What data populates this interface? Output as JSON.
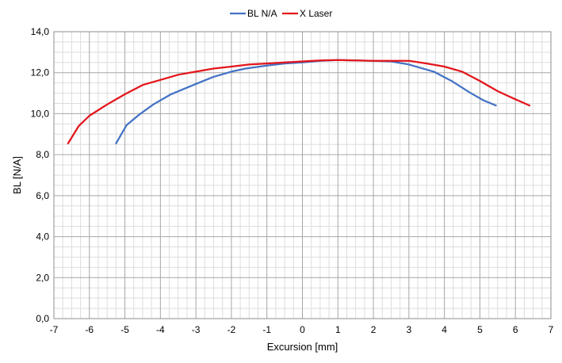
{
  "chart_data": {
    "type": "line",
    "xlabel": "Excursion [mm]",
    "ylabel": "BL [N/A]",
    "xlim": [
      -7,
      7
    ],
    "ylim": [
      0,
      14
    ],
    "x_ticks": [
      "-7",
      "-6",
      "-5",
      "-4",
      "-3",
      "-2",
      "-1",
      "0",
      "1",
      "2",
      "3",
      "4",
      "5",
      "6",
      "7"
    ],
    "y_ticks": [
      "0,0",
      "2,0",
      "4,0",
      "6,0",
      "8,0",
      "10,0",
      "12,0",
      "14,0"
    ],
    "grid": true,
    "legend_position": "top-center",
    "series": [
      {
        "name": "BL N/A",
        "color": "#4472C4",
        "points": [
          [
            -5.25,
            8.55
          ],
          [
            -4.95,
            9.45
          ],
          [
            -4.6,
            9.95
          ],
          [
            -4.2,
            10.45
          ],
          [
            -3.7,
            10.95
          ],
          [
            -3.0,
            11.45
          ],
          [
            -2.5,
            11.8
          ],
          [
            -2.0,
            12.05
          ],
          [
            -1.6,
            12.2
          ],
          [
            -1.0,
            12.35
          ],
          [
            -0.5,
            12.45
          ],
          [
            0.0,
            12.5
          ],
          [
            0.5,
            12.58
          ],
          [
            1.0,
            12.62
          ],
          [
            1.5,
            12.6
          ],
          [
            2.0,
            12.58
          ],
          [
            2.5,
            12.55
          ],
          [
            3.0,
            12.4
          ],
          [
            3.7,
            12.05
          ],
          [
            4.2,
            11.6
          ],
          [
            4.7,
            11.05
          ],
          [
            5.1,
            10.65
          ],
          [
            5.45,
            10.4
          ]
        ]
      },
      {
        "name": "X Laser",
        "color": "#E3151B",
        "points": [
          [
            -6.6,
            8.55
          ],
          [
            -6.3,
            9.4
          ],
          [
            -6.0,
            9.9
          ],
          [
            -5.5,
            10.45
          ],
          [
            -5.0,
            10.95
          ],
          [
            -4.5,
            11.4
          ],
          [
            -4.0,
            11.65
          ],
          [
            -3.5,
            11.9
          ],
          [
            -3.0,
            12.05
          ],
          [
            -2.5,
            12.2
          ],
          [
            -2.0,
            12.3
          ],
          [
            -1.5,
            12.4
          ],
          [
            -1.0,
            12.45
          ],
          [
            -0.5,
            12.5
          ],
          [
            0.0,
            12.55
          ],
          [
            0.5,
            12.6
          ],
          [
            1.0,
            12.62
          ],
          [
            1.5,
            12.6
          ],
          [
            2.0,
            12.58
          ],
          [
            2.5,
            12.58
          ],
          [
            3.0,
            12.58
          ],
          [
            3.5,
            12.45
          ],
          [
            4.0,
            12.3
          ],
          [
            4.5,
            12.05
          ],
          [
            5.0,
            11.6
          ],
          [
            5.5,
            11.1
          ],
          [
            6.0,
            10.7
          ],
          [
            6.4,
            10.4
          ]
        ]
      }
    ]
  }
}
